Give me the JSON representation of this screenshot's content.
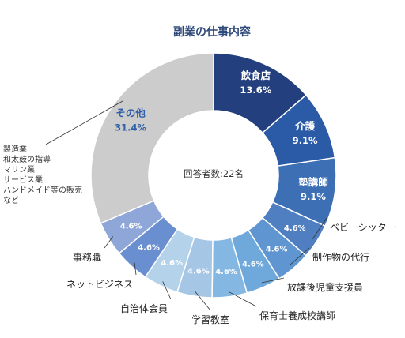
{
  "chart_data": {
    "type": "pie",
    "style": "donut",
    "title": "副業の仕事内容",
    "center_text": "回答者数:22名",
    "slices": [
      {
        "label": "飲食店",
        "value": 13.6,
        "value_label": "13.6%",
        "color": "#243f7e"
      },
      {
        "label": "介護",
        "value": 9.1,
        "value_label": "9.1%",
        "color": "#2b5ba6"
      },
      {
        "label": "塾講師",
        "value": 9.1,
        "value_label": "9.1%",
        "color": "#3d6fb5"
      },
      {
        "label": "ベビーシッター",
        "value": 4.6,
        "value_label": "4.6%",
        "color": "#4f7fc1"
      },
      {
        "label": "制作物の代行",
        "value": 4.6,
        "value_label": "4.6%",
        "color": "#5f95d0"
      },
      {
        "label": "放課後児童支援員",
        "value": 4.6,
        "value_label": "4.6%",
        "color": "#6fa9dc"
      },
      {
        "label": "保育士養成校講師",
        "value": 4.6,
        "value_label": "4.6%",
        "color": "#84b8e3"
      },
      {
        "label": "学習教室",
        "value": 4.6,
        "value_label": "4.6%",
        "color": "#a6c6e6"
      },
      {
        "label": "自治体会員",
        "value": 4.6,
        "value_label": "4.6%",
        "color": "#b4d2ea"
      },
      {
        "label": "ネットビジネス",
        "value": 4.6,
        "value_label": "4.6%",
        "color": "#6a8fd0"
      },
      {
        "label": "事務職",
        "value": 4.6,
        "value_label": "4.6%",
        "color": "#8ea6d8"
      },
      {
        "label": "その他",
        "value": 31.4,
        "value_label": "31.4%",
        "color": "#cccccc"
      }
    ],
    "other_note": [
      "製造業",
      "和太鼓の指導",
      "マリン業",
      "サービス業",
      "ハンドメイド等の販売",
      "など"
    ]
  }
}
